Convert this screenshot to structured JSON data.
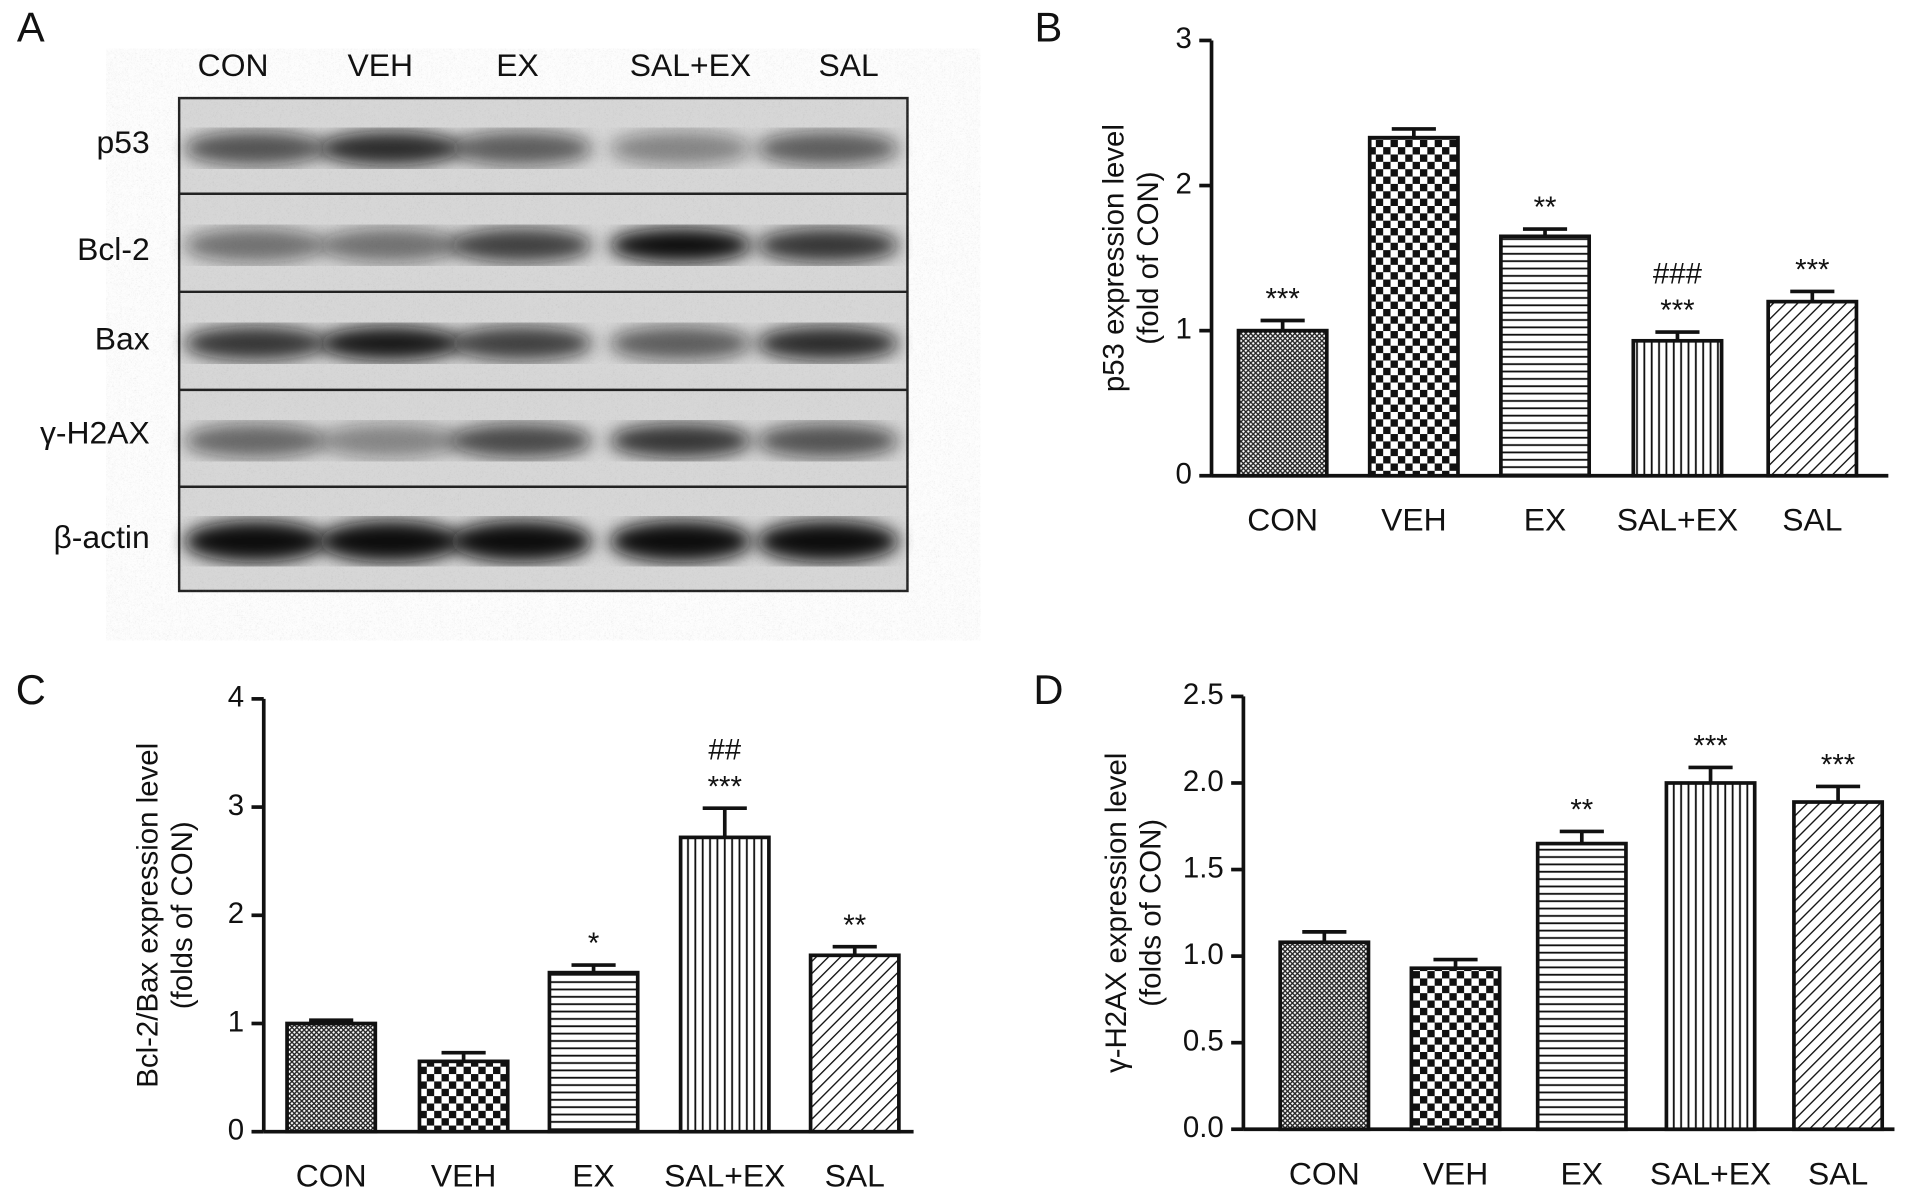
{
  "blot": {
    "panel_label": "A",
    "lanes": [
      "CON",
      "VEH",
      "EX",
      "SAL+EX",
      "SAL"
    ],
    "proteins": [
      "p53",
      "Bcl-2",
      "Bax",
      "γ-H2AX",
      "β-actin"
    ]
  },
  "chart_data": [
    {
      "type": "bar",
      "panel_label": "B",
      "ylabel": [
        "p53 expression level",
        "(fold of CON)"
      ],
      "categories": [
        "CON",
        "VEH",
        "EX",
        "SAL+EX",
        "SAL"
      ],
      "values": [
        1.0,
        2.33,
        1.65,
        0.93,
        1.2
      ],
      "errors": [
        0.07,
        0.06,
        0.05,
        0.06,
        0.07
      ],
      "annotations": [
        [
          "***"
        ],
        [],
        [
          "**"
        ],
        [
          "***",
          "###"
        ],
        [
          "***"
        ]
      ],
      "ylim": [
        0,
        3
      ],
      "yticks": [
        0,
        1,
        2,
        3
      ]
    },
    {
      "type": "bar",
      "panel_label": "C",
      "ylabel": [
        "Bcl-2/Bax expression level",
        "(folds of CON)"
      ],
      "categories": [
        "CON",
        "VEH",
        "EX",
        "SAL+EX",
        "SAL"
      ],
      "values": [
        1.0,
        0.65,
        1.47,
        2.72,
        1.63
      ],
      "errors": [
        0.03,
        0.08,
        0.07,
        0.27,
        0.08
      ],
      "annotations": [
        [],
        [],
        [
          "*"
        ],
        [
          "***",
          "##"
        ],
        [
          "**"
        ]
      ],
      "ylim": [
        0,
        4
      ],
      "yticks": [
        0,
        1,
        2,
        3,
        4
      ]
    },
    {
      "type": "bar",
      "panel_label": "D",
      "ylabel": [
        "γ-H2AX expression level",
        "(folds of CON)"
      ],
      "categories": [
        "CON",
        "VEH",
        "EX",
        "SAL+EX",
        "SAL"
      ],
      "values": [
        1.08,
        0.93,
        1.65,
        2.0,
        1.89
      ],
      "errors": [
        0.06,
        0.05,
        0.07,
        0.09,
        0.09
      ],
      "annotations": [
        [],
        [],
        [
          "**"
        ],
        [
          "***"
        ],
        [
          "***"
        ]
      ],
      "ylim": [
        0,
        2.5
      ],
      "yticks": [
        {
          "value": 0,
          "label": "0.0"
        },
        0.5,
        {
          "value": 1,
          "label": "1.0"
        },
        1.5,
        {
          "value": 2,
          "label": "2.0"
        },
        2.5
      ]
    }
  ]
}
